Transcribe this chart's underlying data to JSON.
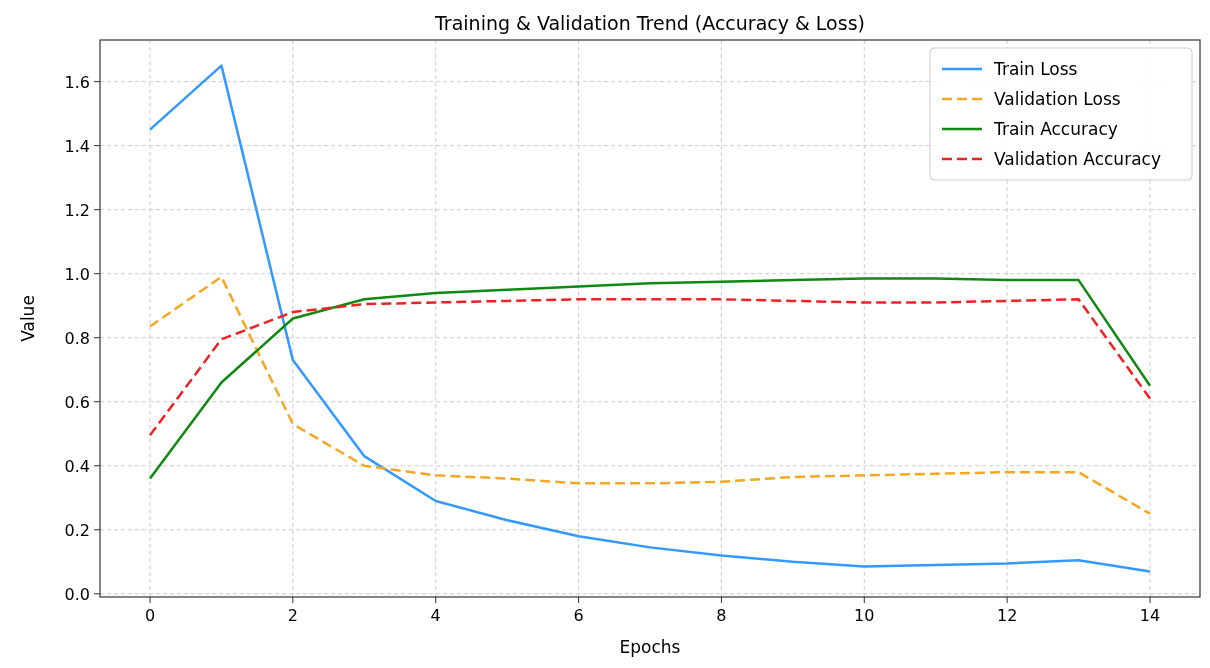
{
  "chart_data": {
    "type": "line",
    "title": "Training & Validation Trend (Accuracy & Loss)",
    "xlabel": "Epochs",
    "ylabel": "Value",
    "x": [
      0,
      1,
      2,
      3,
      4,
      5,
      6,
      7,
      8,
      9,
      10,
      11,
      12,
      13,
      14
    ],
    "series": [
      {
        "name": "Train Loss",
        "color": "#3399ff",
        "line_style": "solid",
        "values": [
          1.45,
          1.65,
          0.73,
          0.43,
          0.29,
          0.23,
          0.18,
          0.145,
          0.12,
          0.1,
          0.085,
          0.09,
          0.095,
          0.105,
          0.07
        ]
      },
      {
        "name": "Validation Loss",
        "color": "#f5a623",
        "line_style": "dashed",
        "values": [
          0.835,
          0.99,
          0.53,
          0.4,
          0.37,
          0.36,
          0.345,
          0.345,
          0.35,
          0.365,
          0.37,
          0.375,
          0.38,
          0.38,
          0.25
        ]
      },
      {
        "name": "Train Accuracy",
        "color": "#118811",
        "line_style": "solid",
        "values": [
          0.36,
          0.66,
          0.86,
          0.92,
          0.94,
          0.95,
          0.96,
          0.97,
          0.975,
          0.98,
          0.985,
          0.985,
          0.98,
          0.98,
          0.65
        ]
      },
      {
        "name": "Validation Accuracy",
        "color": "#ee2222",
        "line_style": "dashed",
        "values": [
          0.495,
          0.795,
          0.88,
          0.905,
          0.91,
          0.915,
          0.92,
          0.92,
          0.92,
          0.915,
          0.91,
          0.91,
          0.915,
          0.92,
          0.61
        ]
      }
    ],
    "xlim": [
      -0.7,
      14.7
    ],
    "ylim": [
      -0.01,
      1.73
    ],
    "xticks": [
      0,
      2,
      4,
      6,
      8,
      10,
      12,
      14
    ],
    "yticks": [
      {
        "value": 0,
        "label": "0.0"
      },
      {
        "value": 0.2,
        "label": "0.2"
      },
      {
        "value": 0.4,
        "label": "0.4"
      },
      {
        "value": 0.6,
        "label": "0.6"
      },
      {
        "value": 0.8,
        "label": "0.8"
      },
      {
        "value": 1,
        "label": "1.0"
      },
      {
        "value": 1.2,
        "label": "1.2"
      },
      {
        "value": 1.4,
        "label": "1.4"
      },
      {
        "value": 1.6,
        "label": "1.6"
      }
    ],
    "grid": true,
    "legend": "top right",
    "marker": "none"
  }
}
